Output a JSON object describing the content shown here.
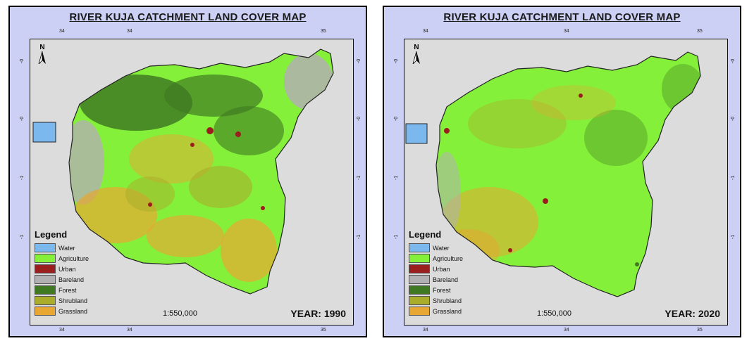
{
  "colors": {
    "water": "#7ab8ee",
    "agriculture": "#85f03a",
    "urban": "#9a1e1e",
    "bareland": "#b2b0b2",
    "forest": "#3f7a22",
    "shrubland": "#a9ad2a",
    "grassland": "#e8a632",
    "panel_bg": "#cdd0f5",
    "map_bg": "#dcdcdc"
  },
  "maps": [
    {
      "title": "RIVER KUJA CATCHMENT LAND COVER MAP",
      "north_label": "N",
      "top_ticks": [
        "34",
        "34",
        "35"
      ],
      "bottom_ticks": [
        "34",
        "34",
        "35"
      ],
      "left_ticks": [
        "-0",
        "-0",
        "-1",
        "-1"
      ],
      "right_ticks": [
        "-0",
        "-0",
        "-1",
        "-1"
      ],
      "legend": {
        "title": "Legend",
        "items": [
          {
            "label": "Water",
            "color": "#7ab8ee"
          },
          {
            "label": "Agriculture",
            "color": "#85f03a"
          },
          {
            "label": "Urban",
            "color": "#9a1e1e"
          },
          {
            "label": "Bareland",
            "color": "#b2b0b2"
          },
          {
            "label": "Forest",
            "color": "#3f7a22"
          },
          {
            "label": "Shrubland",
            "color": "#a9ad2a"
          },
          {
            "label": "Grassland",
            "color": "#e8a632"
          }
        ]
      },
      "scale": "1:550,000",
      "year_label": "YEAR: 1990",
      "dominant_cover": "mixed agriculture, forest and grassland"
    },
    {
      "title": "RIVER KUJA CATCHMENT LAND COVER MAP",
      "north_label": "N",
      "top_ticks": [
        "34",
        "34",
        "35"
      ],
      "bottom_ticks": [
        "34",
        "34",
        "35"
      ],
      "left_ticks": [
        "-0",
        "-0",
        "-1",
        "-1"
      ],
      "right_ticks": [
        "-0",
        "-0",
        "-1",
        "-1"
      ],
      "legend": {
        "title": "Legend",
        "items": [
          {
            "label": "Water",
            "color": "#7ab8ee"
          },
          {
            "label": "Agriculture",
            "color": "#85f03a"
          },
          {
            "label": "Urban",
            "color": "#9a1e1e"
          },
          {
            "label": "Bareland",
            "color": "#b2b0b2"
          },
          {
            "label": "Forest",
            "color": "#3f7a22"
          },
          {
            "label": "Shrubland",
            "color": "#a9ad2a"
          },
          {
            "label": "Grassland",
            "color": "#e8a632"
          }
        ]
      },
      "scale": "1:550,000",
      "year_label": "YEAR: 2020",
      "dominant_cover": "agriculture"
    }
  ]
}
